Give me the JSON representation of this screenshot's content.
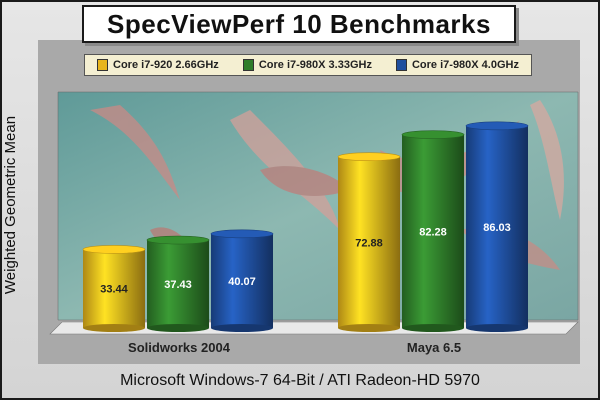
{
  "chart_data": {
    "type": "bar",
    "title": "SpecViewPerf 10 Benchmarks",
    "xlabel": "Microsoft Windows-7 64-Bit / ATI Radeon-HD 5970",
    "ylabel": "Weighted Geometric Mean",
    "categories": [
      "Solidworks 2004",
      "Maya 6.5"
    ],
    "series": [
      {
        "name": "Core i7-920 2.66GHz",
        "color": "#e8b51c",
        "values": [
          33.44,
          72.88
        ]
      },
      {
        "name": "Core i7-980X 3.33GHz",
        "color": "#2f7d2a",
        "values": [
          37.43,
          82.28
        ]
      },
      {
        "name": "Core i7-980X 4.0GHz",
        "color": "#1f4f9e",
        "values": [
          40.07,
          86.03
        ]
      }
    ],
    "ylim": [
      0,
      100
    ],
    "legend_position": "top",
    "grid": false
  }
}
